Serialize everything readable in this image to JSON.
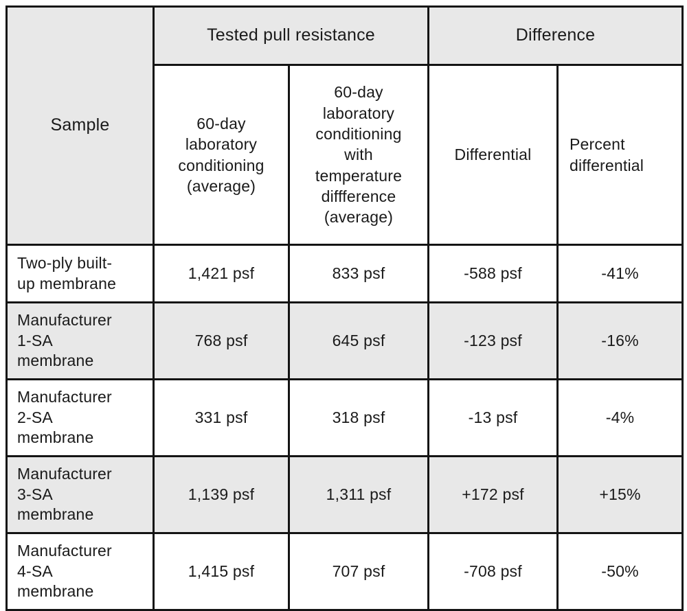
{
  "colors": {
    "stripe": "#e8e8e8",
    "border": "#141414",
    "text": "#1a1a1a",
    "background": "#ffffff"
  },
  "chart_data": {
    "type": "table",
    "header": {
      "sample": "Sample",
      "group_tested": "Tested pull resistance",
      "group_difference": "Difference",
      "sub_conditioning": "60-day\nlaboratory\nconditioning\n(average)",
      "sub_conditioning_temp": "60-day\nlaboratory\nconditioning\nwith\ntemperature\ndiffference\n(average)",
      "sub_differential": "Differential",
      "sub_percent": "Percent\ndifferential"
    },
    "rows": [
      {
        "sample": "Two-ply built-\nup membrane",
        "conditioning": "1,421 psf",
        "conditioning_temp": "833 psf",
        "differential": "-588 psf",
        "percent": "-41%"
      },
      {
        "sample": "Manufacturer\n1-SA\nmembrane",
        "conditioning": "768 psf",
        "conditioning_temp": "645 psf",
        "differential": "-123 psf",
        "percent": "-16%"
      },
      {
        "sample": "Manufacturer\n2-SA\nmembrane",
        "conditioning": "331 psf",
        "conditioning_temp": "318 psf",
        "differential": "-13 psf",
        "percent": "-4%"
      },
      {
        "sample": "Manufacturer\n3-SA\nmembrane",
        "conditioning": "1,139 psf",
        "conditioning_temp": "1,311 psf",
        "differential": "+172 psf",
        "percent": "+15%"
      },
      {
        "sample": "Manufacturer\n4-SA\nmembrane",
        "conditioning": "1,415 psf",
        "conditioning_temp": "707 psf",
        "differential": "-708 psf",
        "percent": "-50%"
      }
    ],
    "units": "psf"
  }
}
